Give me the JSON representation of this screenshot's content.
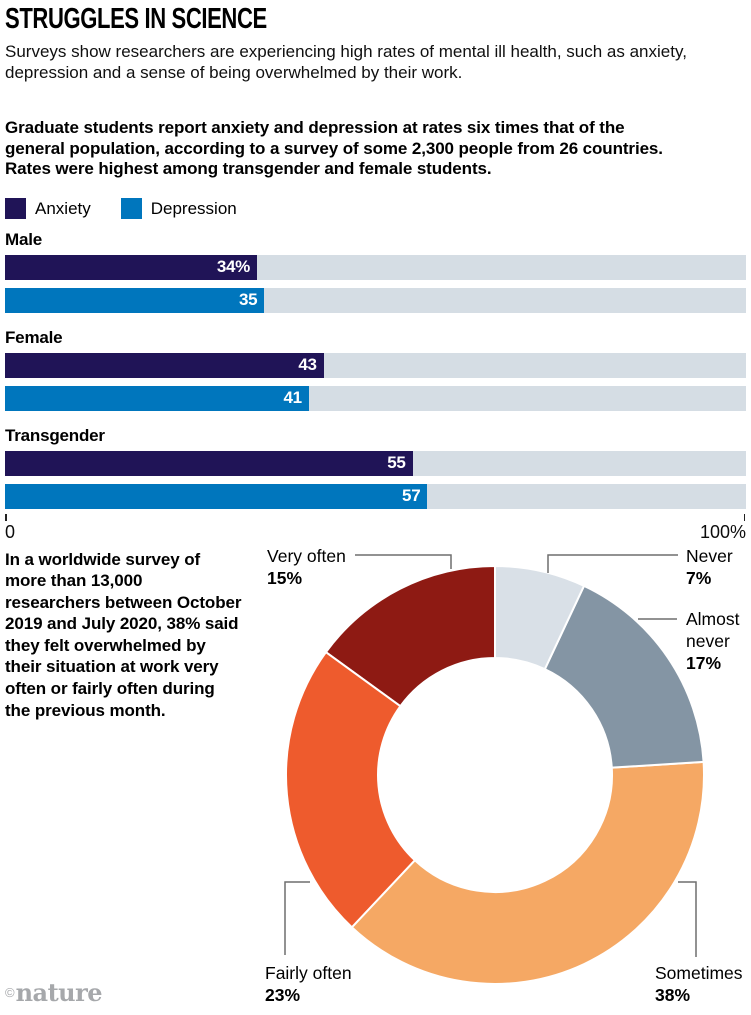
{
  "header": {
    "title": "STRUGGLES IN SCIENCE",
    "subtitle": "Surveys show researchers are experiencing high rates of mental ill health, such as anxiety, depression and a sense of being overwhelmed by their work."
  },
  "bar_section": {
    "intro": "Graduate students report anxiety and depression at rates six times that of the general population, according to a survey of some 2,300 people from 26 countries. Rates were highest among transgender and female students.",
    "axis": {
      "min_label": "0",
      "max_label": "100%"
    }
  },
  "donut_section": {
    "side_text": "In a worldwide survey of more than 13,000 researchers between October 2019 and July 2020, 38% said they felt overwhelmed by their situation at work very often or fairly often during the previous month."
  },
  "footer": {
    "credit_symbol": "©",
    "credit_name": "nature"
  },
  "chart_data": [
    {
      "type": "bar",
      "orientation": "horizontal",
      "categories": [
        "Male",
        "Female",
        "Transgender"
      ],
      "series": [
        {
          "name": "Anxiety",
          "color": "#201457",
          "values": [
            34,
            43,
            55
          ],
          "labels": [
            "34%",
            "43",
            "55"
          ]
        },
        {
          "name": "Depression",
          "color": "#0076bd",
          "values": [
            35,
            41,
            57
          ],
          "labels": [
            "35",
            "41",
            "57"
          ]
        }
      ],
      "xlim": [
        0,
        100
      ],
      "track_color": "#d5dde4",
      "legend_position": "top"
    },
    {
      "type": "pie",
      "donut": true,
      "start_angle_deg": 0,
      "direction": "clockwise",
      "leader_color": "#6f6f6f",
      "slices": [
        {
          "label": "Never",
          "pct": 7,
          "pct_label": "7%",
          "color": "#d9e0e7"
        },
        {
          "label": "Almost never",
          "pct": 17,
          "pct_label": "17%",
          "color": "#8495a4"
        },
        {
          "label": "Sometimes",
          "pct": 38,
          "pct_label": "38%",
          "color": "#f5a864"
        },
        {
          "label": "Fairly often",
          "pct": 23,
          "pct_label": "23%",
          "color": "#ee5b2d"
        },
        {
          "label": "Very often",
          "pct": 15,
          "pct_label": "15%",
          "color": "#8e1a13"
        }
      ]
    }
  ]
}
